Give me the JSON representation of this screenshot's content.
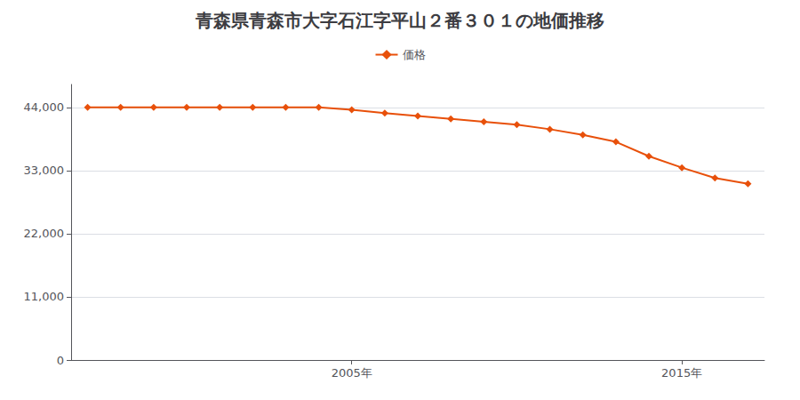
{
  "chart_data": {
    "type": "line",
    "title": "青森県青森市大字石江字平山２番３０１の地価推移",
    "x": [
      1997,
      1998,
      1999,
      2000,
      2001,
      2002,
      2003,
      2004,
      2005,
      2006,
      2007,
      2008,
      2009,
      2010,
      2011,
      2012,
      2013,
      2014,
      2015,
      2016,
      2017
    ],
    "series": [
      {
        "name": "価格",
        "color": "#e8500a",
        "marker": "diamond",
        "values": [
          44000,
          44000,
          44000,
          44000,
          44000,
          44000,
          44000,
          44000,
          43600,
          43000,
          42500,
          42000,
          41500,
          41000,
          40200,
          39200,
          38000,
          35500,
          33500,
          31700,
          30700
        ]
      }
    ],
    "xlim": [
      1996.5,
      2017.5
    ],
    "xticks": [
      {
        "value": 2005,
        "label": "2005年"
      },
      {
        "value": 2015,
        "label": "2015年"
      }
    ],
    "ylim": [
      0,
      48000
    ],
    "yticks": [
      0,
      {
        "value": 11000,
        "label": "11,000"
      },
      {
        "value": 22000,
        "label": "22,000"
      },
      {
        "value": 33000,
        "label": "33,000"
      },
      {
        "value": 44000,
        "label": "44,000"
      }
    ],
    "grid": true,
    "legend": "top"
  }
}
